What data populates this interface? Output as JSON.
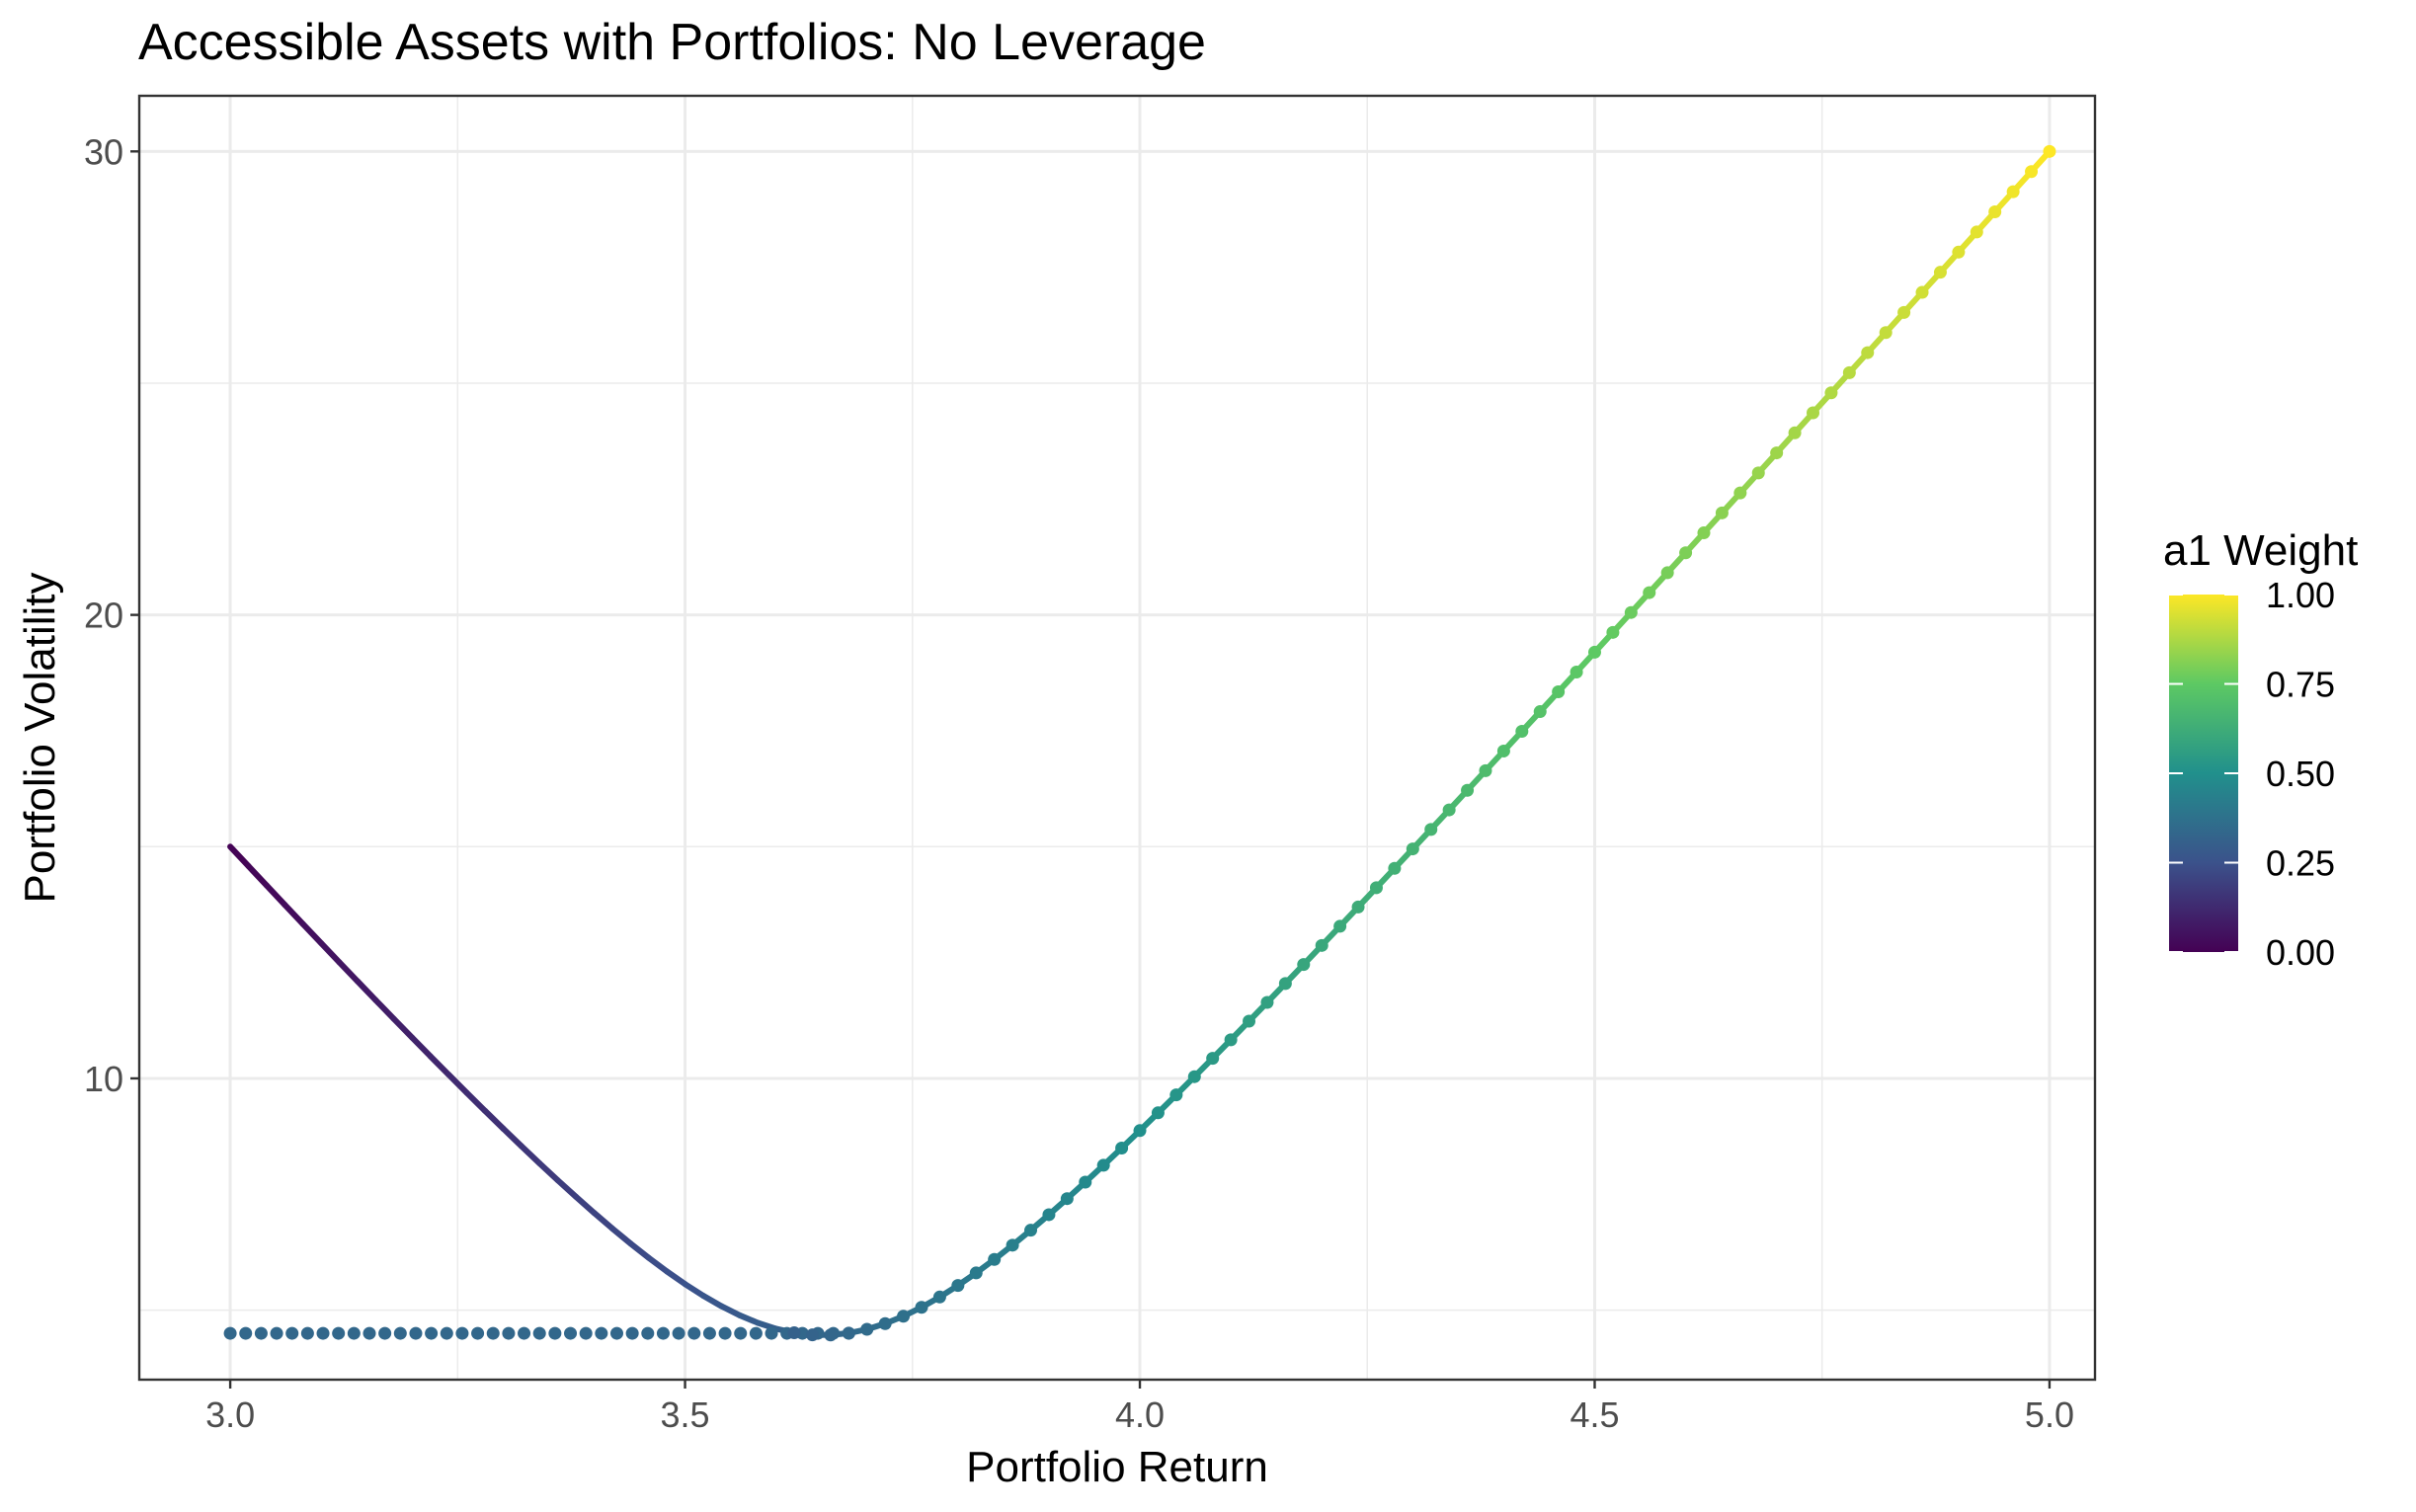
{
  "chart_data": {
    "type": "line",
    "title": "Accessible Assets with Portfolios: No Leverage",
    "xlabel": "Portfolio Return",
    "ylabel": "Portfolio Volatility",
    "xlim": [
      2.9,
      5.05
    ],
    "ylim": [
      3.5,
      31.2
    ],
    "x_ticks": [
      3.0,
      3.5,
      4.0,
      4.5,
      5.0
    ],
    "x_tick_labels": [
      "3.0",
      "3.5",
      "4.0",
      "4.5",
      "5.0"
    ],
    "y_ticks": [
      10,
      20,
      30
    ],
    "y_tick_labels": [
      "10",
      "20",
      "30"
    ],
    "grid": true,
    "legend": {
      "title": "a1 Weight",
      "position": "right",
      "type": "colorbar",
      "range": [
        0,
        1
      ],
      "ticks": [
        0,
        0.25,
        0.5,
        0.75,
        1.0
      ],
      "tick_labels": [
        "0.00",
        "0.25",
        "0.50",
        "0.75",
        "1.00"
      ],
      "colors": [
        "#440154",
        "#3b528b",
        "#21908c",
        "#5dc963",
        "#fde725"
      ]
    },
    "series": [
      {
        "kind": "portfolio_curve",
        "x_range": [
          3.0,
          5.0
        ],
        "volatility_a0": 15.0,
        "volatility_a1": 30.0,
        "correlation": -0.9,
        "weight_step": 0.01,
        "color_by": "a1 Weight"
      },
      {
        "kind": "flat_points",
        "x_range": [
          3.0,
          3.68
        ],
        "y": 4.5,
        "weight": 0.333
      }
    ]
  }
}
